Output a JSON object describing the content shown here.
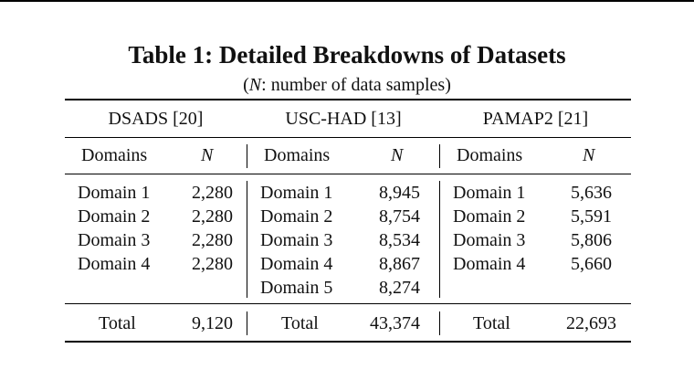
{
  "table": {
    "title": "Table 1: Detailed Breakdowns of Datasets",
    "subtitle_symbol": "N",
    "subtitle_rest": ": number of data samples)",
    "subtitle_open": "(",
    "groups": [
      {
        "name": "DSADS [20]",
        "domains_header": "Domains",
        "n_header": "N",
        "rows": [
          {
            "domain": "Domain 1",
            "n": "2,280"
          },
          {
            "domain": "Domain 2",
            "n": "2,280"
          },
          {
            "domain": "Domain 3",
            "n": "2,280"
          },
          {
            "domain": "Domain 4",
            "n": "2,280"
          }
        ],
        "total_label": "Total",
        "total": "9,120"
      },
      {
        "name": "USC-HAD [13]",
        "domains_header": "Domains",
        "n_header": "N",
        "rows": [
          {
            "domain": "Domain 1",
            "n": "8,945"
          },
          {
            "domain": "Domain 2",
            "n": "8,754"
          },
          {
            "domain": "Domain 3",
            "n": "8,534"
          },
          {
            "domain": "Domain 4",
            "n": "8,867"
          },
          {
            "domain": "Domain 5",
            "n": "8,274"
          }
        ],
        "total_label": "Total",
        "total": "43,374"
      },
      {
        "name": "PAMAP2 [21]",
        "domains_header": "Domains",
        "n_header": "N",
        "rows": [
          {
            "domain": "Domain 1",
            "n": "5,636"
          },
          {
            "domain": "Domain 2",
            "n": "5,591"
          },
          {
            "domain": "Domain 3",
            "n": "5,806"
          },
          {
            "domain": "Domain 4",
            "n": "5,660"
          }
        ],
        "total_label": "Total",
        "total": "22,693"
      }
    ]
  }
}
